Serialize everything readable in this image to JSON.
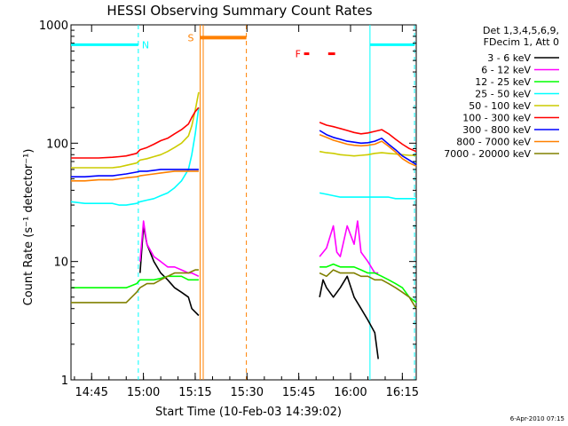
{
  "chart_data": {
    "type": "line",
    "title": "HESSI Observing Summary Count Rates",
    "xlabel": "Start Time (10-Feb-03 14:39:02)",
    "ylabel": "Count Rate (s⁻¹ detector⁻¹)",
    "yscale": "log",
    "ylim": [
      1,
      1000
    ],
    "xlim_minutes": [
      0,
      100
    ],
    "x_ticks": [
      {
        "m": 5.97,
        "label": "14:45"
      },
      {
        "m": 20.97,
        "label": "15:00"
      },
      {
        "m": 35.97,
        "label": "15:15"
      },
      {
        "m": 50.97,
        "label": "15:30"
      },
      {
        "m": 65.97,
        "label": "15:45"
      },
      {
        "m": 80.97,
        "label": "16:00"
      },
      {
        "m": 95.97,
        "label": "16:15"
      }
    ],
    "y_ticks": [
      {
        "v": 1,
        "label": "1"
      },
      {
        "v": 10,
        "label": "10"
      },
      {
        "v": 100,
        "label": "100"
      },
      {
        "v": 1000,
        "label": "1000"
      }
    ],
    "legend_header": [
      "Det 1,3,4,5,6,9,",
      "FDecim 1, Att 0"
    ],
    "date_stamp": "6-Apr-2010 07:15",
    "grid": false,
    "legend_position": "right",
    "series": [
      {
        "name": "3 - 6 keV",
        "color": "#000000",
        "x": [
          0,
          4,
          8,
          12,
          16,
          19,
          20,
          21,
          22,
          24,
          26,
          28,
          30,
          32,
          34,
          35,
          37,
          37.4,
          72,
          73,
          74,
          76,
          78,
          80,
          82,
          84,
          86,
          88,
          89,
          90,
          92,
          94,
          96,
          98,
          100
        ],
        "y": [
          null,
          null,
          null,
          null,
          null,
          null,
          8,
          20,
          14,
          10,
          8,
          7,
          6,
          5.5,
          5,
          4,
          3.5,
          null,
          5,
          7,
          6,
          5,
          6,
          7.5,
          5,
          4,
          3.2,
          2.5,
          1.5,
          null,
          null,
          null,
          null,
          null,
          null
        ]
      },
      {
        "name": "6 - 12 keV",
        "color": "#ff00ff",
        "x": [
          0,
          8,
          12,
          16,
          19,
          20,
          21,
          22,
          24,
          26,
          28,
          30,
          32,
          34,
          35,
          37,
          37.4,
          72,
          74,
          76,
          77,
          78,
          80,
          82,
          83,
          84,
          86,
          88,
          89
        ],
        "y": [
          null,
          null,
          null,
          null,
          null,
          10,
          22,
          14,
          11,
          10,
          9,
          9,
          8.5,
          8,
          8,
          7.5,
          null,
          11,
          13,
          20,
          12,
          11,
          20,
          14,
          22,
          12,
          10,
          8,
          8
        ]
      },
      {
        "name": "12 - 25 keV",
        "color": "#00ff00",
        "x": [
          0,
          4,
          8,
          12,
          14,
          16,
          19,
          20,
          22,
          24,
          26,
          28,
          30,
          32,
          34,
          36,
          37,
          37.4,
          72,
          74,
          76,
          78,
          80,
          82,
          84,
          86,
          88,
          90,
          92,
          94,
          96,
          98,
          100
        ],
        "y": [
          6,
          6,
          6,
          6,
          6,
          6,
          6.5,
          7,
          7,
          7,
          7.2,
          7.5,
          7.5,
          7.5,
          7,
          7,
          7,
          null,
          9,
          9,
          9.5,
          9,
          9,
          9,
          8.5,
          8,
          8,
          7.5,
          7,
          6.5,
          6,
          5,
          4.5
        ]
      },
      {
        "name": "25 - 50 keV",
        "color": "#00ffff",
        "x": [
          0,
          4,
          8,
          12,
          14,
          16,
          19,
          20,
          22,
          24,
          26,
          28,
          30,
          32,
          34,
          35,
          36,
          37,
          37.4,
          72,
          74,
          76,
          78,
          80,
          82,
          84,
          86,
          88,
          90,
          92,
          94,
          96,
          98,
          100
        ],
        "y": [
          32,
          31,
          31,
          31,
          30,
          30,
          31,
          32,
          33,
          34,
          36,
          38,
          42,
          48,
          60,
          80,
          120,
          200,
          null,
          38,
          37,
          36,
          35,
          35,
          35,
          35,
          35,
          35,
          35,
          35,
          34,
          34,
          34,
          34
        ]
      },
      {
        "name": "50 - 100 keV",
        "color": "#cccc00",
        "x": [
          0,
          4,
          8,
          12,
          14,
          16,
          19,
          20,
          22,
          24,
          26,
          28,
          30,
          32,
          34,
          35,
          36,
          37,
          37.4,
          72,
          74,
          76,
          78,
          80,
          82,
          84,
          86,
          88,
          90,
          92,
          94,
          96,
          98,
          100
        ],
        "y": [
          62,
          62,
          62,
          62,
          63,
          65,
          68,
          72,
          74,
          77,
          80,
          85,
          92,
          100,
          115,
          140,
          190,
          270,
          null,
          85,
          83,
          82,
          80,
          79,
          78,
          79,
          80,
          82,
          83,
          82,
          81,
          80,
          79,
          79
        ]
      },
      {
        "name": "100 - 300 keV",
        "color": "#ff0000",
        "x": [
          0,
          4,
          8,
          12,
          14,
          16,
          19,
          20,
          22,
          24,
          26,
          28,
          30,
          32,
          34,
          35,
          36,
          37,
          37.4,
          72,
          74,
          76,
          78,
          80,
          82,
          84,
          86,
          88,
          90,
          92,
          94,
          96,
          98,
          100
        ],
        "y": [
          75,
          75,
          75,
          76,
          77,
          78,
          82,
          88,
          92,
          98,
          105,
          110,
          120,
          130,
          145,
          165,
          185,
          200,
          null,
          150,
          142,
          138,
          133,
          128,
          123,
          120,
          122,
          126,
          130,
          120,
          108,
          98,
          90,
          85
        ]
      },
      {
        "name": "300 - 800 keV",
        "color": "#0000ff",
        "x": [
          0,
          4,
          8,
          12,
          14,
          16,
          19,
          20,
          22,
          24,
          26,
          28,
          30,
          32,
          34,
          36,
          37,
          37.4,
          72,
          74,
          76,
          78,
          80,
          82,
          84,
          86,
          88,
          90,
          92,
          94,
          96,
          98,
          100
        ],
        "y": [
          52,
          52,
          53,
          53,
          54,
          55,
          57,
          58,
          58,
          59,
          60,
          60,
          60,
          60,
          60,
          60,
          60,
          null,
          128,
          118,
          112,
          108,
          104,
          102,
          100,
          101,
          104,
          110,
          98,
          88,
          78,
          72,
          66
        ]
      },
      {
        "name": "800 - 7000 keV",
        "color": "#ff8000",
        "x": [
          0,
          4,
          8,
          12,
          14,
          16,
          19,
          20,
          22,
          24,
          26,
          28,
          30,
          32,
          34,
          36,
          37,
          37.4,
          72,
          74,
          76,
          78,
          80,
          82,
          84,
          86,
          88,
          90,
          92,
          94,
          96,
          98,
          100
        ],
        "y": [
          48,
          48,
          49,
          49,
          50,
          51,
          52,
          53,
          54,
          55,
          56,
          57,
          58,
          58,
          58,
          58,
          58,
          null,
          118,
          112,
          106,
          102,
          98,
          96,
          95,
          96,
          98,
          104,
          94,
          84,
          74,
          68,
          64
        ]
      },
      {
        "name": "7000 - 20000 keV",
        "color": "#808000",
        "x": [
          0,
          4,
          8,
          12,
          14,
          16,
          19,
          20,
          22,
          24,
          26,
          28,
          30,
          32,
          34,
          36,
          37,
          37.4,
          72,
          74,
          76,
          78,
          80,
          82,
          84,
          86,
          88,
          90,
          92,
          94,
          96,
          98,
          100
        ],
        "y": [
          4.5,
          4.5,
          4.5,
          4.5,
          4.5,
          4.5,
          5.5,
          6,
          6.5,
          6.5,
          7,
          7.5,
          8,
          8,
          8,
          8.5,
          8.5,
          null,
          8,
          7.5,
          8.5,
          8,
          8,
          8,
          7.5,
          7.5,
          7,
          7,
          6.5,
          6,
          5.5,
          5,
          4
        ]
      }
    ],
    "annotations": {
      "night_bars": [
        {
          "label": "N",
          "x_start": 0,
          "x_end": 19.5,
          "level": 680,
          "color": "#00ffff"
        },
        {
          "label": "",
          "x_start": 86.6,
          "x_end": 99.5,
          "level": 680,
          "color": "#00ffff"
        }
      ],
      "saa_bar": {
        "label": "S",
        "x_start": 37.4,
        "x_end": 50.8,
        "level": 780,
        "color": "#ff8000"
      },
      "flare_marks": {
        "label": "F",
        "x_start": 67.5,
        "x_end": 76.5,
        "level": 570,
        "color": "#ff0000"
      },
      "vertical_lines": [
        {
          "m": 19.5,
          "color": "#00ffff",
          "dashed": true
        },
        {
          "m": 37.4,
          "color": "#ff8000",
          "dashed": false
        },
        {
          "m": 38.3,
          "color": "#ff8000",
          "dashed": false
        },
        {
          "m": 50.8,
          "color": "#ff8000",
          "dashed": true
        },
        {
          "m": 86.6,
          "color": "#00ffff",
          "dashed": false
        },
        {
          "m": 99.5,
          "color": "#00ffff",
          "dashed": true
        }
      ]
    }
  }
}
